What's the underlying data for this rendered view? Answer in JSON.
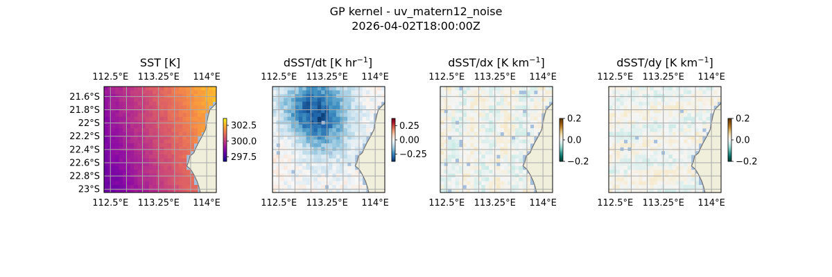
{
  "figure": {
    "title_line1": "GP kernel - uv_matern12_noise",
    "title_line2": "2026-04-02T18:00:00Z"
  },
  "lon_ticks": [
    "112.5°E",
    "113.25°E",
    "114°E"
  ],
  "lat_ticks": [
    "21.6°S",
    "21.8°S",
    "22°S",
    "22.2°S",
    "22.4°S",
    "22.6°S",
    "22.8°S",
    "23°S"
  ],
  "extent": {
    "lon_min": 112.4,
    "lon_max": 114.15,
    "lat_min": -23.05,
    "lat_max": -21.45
  },
  "coast_lonlat": [
    [
      114.15,
      -21.7
    ],
    [
      114.1,
      -21.75
    ],
    [
      114.05,
      -21.8
    ],
    [
      114.02,
      -21.9
    ],
    [
      114.0,
      -22.0
    ],
    [
      113.98,
      -22.1
    ],
    [
      113.93,
      -22.2
    ],
    [
      113.87,
      -22.3
    ],
    [
      113.83,
      -22.38
    ],
    [
      113.8,
      -22.45
    ],
    [
      113.74,
      -22.5
    ],
    [
      113.72,
      -22.58
    ],
    [
      113.69,
      -22.65
    ],
    [
      113.75,
      -22.7
    ],
    [
      113.8,
      -22.78
    ],
    [
      113.85,
      -22.88
    ],
    [
      113.88,
      -22.97
    ],
    [
      113.9,
      -23.05
    ]
  ],
  "chart_data": [
    {
      "type": "heatmap",
      "title": "SST [K]",
      "colormap": "plasma",
      "colorbar": {
        "ticks": [
          "302.5",
          "300.0",
          "297.5"
        ],
        "range": [
          296.8,
          303.6
        ]
      },
      "show_lat_labels": true
    },
    {
      "type": "heatmap",
      "title_main": "dSST/dt [K hr",
      "title_sup": "−1",
      "title_end": "]",
      "colormap": "RdBu_r",
      "colorbar": {
        "ticks": [
          "0.25",
          "0.00",
          "−0.25"
        ],
        "range": [
          -0.38,
          0.38
        ]
      },
      "show_lat_labels": false
    },
    {
      "type": "heatmap",
      "title_main": "dSST/dx [K km",
      "title_sup": "−1",
      "title_end": "]",
      "colormap": "BrBG",
      "colorbar": {
        "ticks": [
          "0.2",
          "0.0",
          "−0.2"
        ],
        "range": [
          -0.2,
          0.2
        ]
      },
      "show_lat_labels": false
    },
    {
      "type": "heatmap",
      "title_main": "dSST/dy [K km",
      "title_sup": "−1",
      "title_end": "]",
      "colormap": "BrBG",
      "colorbar": {
        "ticks": [
          "0.2",
          "0.0",
          "−0.2"
        ],
        "range": [
          -0.2,
          0.2
        ]
      },
      "show_lat_labels": false
    }
  ]
}
